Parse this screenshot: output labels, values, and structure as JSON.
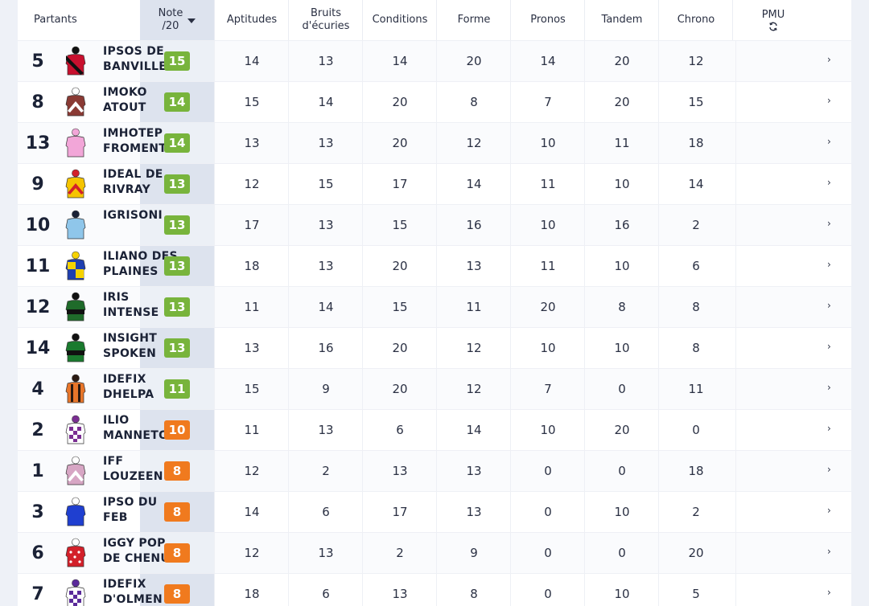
{
  "header": {
    "partants": "Partants",
    "note_line1": "Note",
    "note_line2": "/20",
    "aptitudes": "Aptitudes",
    "bruits_line1": "Bruits",
    "bruits_line2": "d'écuries",
    "conditions": "Conditions",
    "forme": "Forme",
    "pronos": "Pronos",
    "tandem": "Tandem",
    "chrono": "Chrono",
    "pmu": "PMU",
    "pmu_icon": "refresh-icon"
  },
  "colors": {
    "green_badge": "#78b43c",
    "orange_badge": "#f07a1e",
    "note_column_bg": "#dde3ee"
  },
  "rows": [
    {
      "num": "5",
      "name": "IPSOS DE BANVILLE",
      "note": "15",
      "note_color": "green",
      "aptitudes": "14",
      "bruits": "13",
      "conditions": "14",
      "forme": "20",
      "pronos": "14",
      "tandem": "20",
      "chrono": "12",
      "silk": {
        "primary": "#c8102e",
        "secondary": "#111111",
        "pattern": "sash"
      }
    },
    {
      "num": "8",
      "name": "IMOKO ATOUT",
      "note": "14",
      "note_color": "green",
      "aptitudes": "15",
      "bruits": "14",
      "conditions": "20",
      "forme": "8",
      "pronos": "7",
      "tandem": "20",
      "chrono": "15",
      "silk": {
        "primary": "#8a3a34",
        "secondary": "#ffffff",
        "pattern": "chevron"
      }
    },
    {
      "num": "13",
      "name": "IMHOTEP FROMENTRO",
      "note": "14",
      "note_color": "green",
      "aptitudes": "13",
      "bruits": "13",
      "conditions": "20",
      "forme": "12",
      "pronos": "10",
      "tandem": "11",
      "chrono": "18",
      "silk": {
        "primary": "#f2a6d8",
        "secondary": "#f2a6d8",
        "pattern": "plain"
      }
    },
    {
      "num": "9",
      "name": "IDEAL DE RIVRAY",
      "note": "13",
      "note_color": "green",
      "aptitudes": "12",
      "bruits": "15",
      "conditions": "17",
      "forme": "14",
      "pronos": "11",
      "tandem": "10",
      "chrono": "14",
      "silk": {
        "primary": "#f5c400",
        "secondary": "#d3202a",
        "pattern": "chevron"
      }
    },
    {
      "num": "10",
      "name": "IGRISONI",
      "note": "13",
      "note_color": "green",
      "aptitudes": "17",
      "bruits": "13",
      "conditions": "15",
      "forme": "16",
      "pronos": "10",
      "tandem": "16",
      "chrono": "2",
      "silk": {
        "primary": "#8fc6ea",
        "secondary": "#1b2236",
        "pattern": "plain"
      }
    },
    {
      "num": "11",
      "name": "ILIANO DES PLAINES",
      "note": "13",
      "note_color": "green",
      "aptitudes": "18",
      "bruits": "13",
      "conditions": "20",
      "forme": "13",
      "pronos": "11",
      "tandem": "10",
      "chrono": "6",
      "silk": {
        "primary": "#1f3fb0",
        "secondary": "#f5d200",
        "pattern": "quarters"
      }
    },
    {
      "num": "12",
      "name": "IRIS INTENSE",
      "note": "13",
      "note_color": "green",
      "aptitudes": "11",
      "bruits": "14",
      "conditions": "15",
      "forme": "11",
      "pronos": "20",
      "tandem": "8",
      "chrono": "8",
      "silk": {
        "primary": "#1f6b2a",
        "secondary": "#111111",
        "pattern": "hoop"
      }
    },
    {
      "num": "14",
      "name": "INSIGHT SPOKEN",
      "note": "13",
      "note_color": "green",
      "aptitudes": "13",
      "bruits": "16",
      "conditions": "20",
      "forme": "12",
      "pronos": "10",
      "tandem": "10",
      "chrono": "8",
      "silk": {
        "primary": "#1a7a2e",
        "secondary": "#111111",
        "pattern": "hoop"
      }
    },
    {
      "num": "4",
      "name": "IDEFIX DHELPA",
      "note": "11",
      "note_color": "green",
      "aptitudes": "15",
      "bruits": "9",
      "conditions": "20",
      "forme": "12",
      "pronos": "7",
      "tandem": "0",
      "chrono": "11",
      "silk": {
        "primary": "#e8762a",
        "secondary": "#2a1a12",
        "pattern": "stripes"
      }
    },
    {
      "num": "2",
      "name": "ILIO MANNETOT",
      "note": "10",
      "note_color": "orange",
      "aptitudes": "11",
      "bruits": "13",
      "conditions": "6",
      "forme": "14",
      "pronos": "10",
      "tandem": "20",
      "chrono": "0",
      "silk": {
        "primary": "#ffffff",
        "secondary": "#7a2e92",
        "pattern": "check"
      }
    },
    {
      "num": "1",
      "name": "IFF LOUZEEN",
      "note": "8",
      "note_color": "orange",
      "aptitudes": "12",
      "bruits": "2",
      "conditions": "13",
      "forme": "13",
      "pronos": "0",
      "tandem": "0",
      "chrono": "18",
      "silk": {
        "primary": "#d7a6c4",
        "secondary": "#ffffff",
        "pattern": "chevron"
      }
    },
    {
      "num": "3",
      "name": "IPSO DU FEB",
      "note": "8",
      "note_color": "orange",
      "aptitudes": "14",
      "bruits": "6",
      "conditions": "17",
      "forme": "13",
      "pronos": "0",
      "tandem": "10",
      "chrono": "2",
      "silk": {
        "primary": "#1f3fd0",
        "secondary": "#ffffff",
        "pattern": "plain"
      }
    },
    {
      "num": "6",
      "name": "IGGY POP DE CHENU",
      "note": "8",
      "note_color": "orange",
      "aptitudes": "12",
      "bruits": "13",
      "conditions": "2",
      "forme": "9",
      "pronos": "0",
      "tandem": "0",
      "chrono": "20",
      "silk": {
        "primary": "#d3202a",
        "secondary": "#ffffff",
        "pattern": "dots"
      }
    },
    {
      "num": "7",
      "name": "IDEFIX D'OLMEN",
      "note": "8",
      "note_color": "orange",
      "aptitudes": "18",
      "bruits": "6",
      "conditions": "13",
      "forme": "8",
      "pronos": "0",
      "tandem": "10",
      "chrono": "5",
      "silk": {
        "primary": "#ffffff",
        "secondary": "#5a2a9a",
        "pattern": "check"
      }
    }
  ],
  "row_action_icon": "chevron-right-icon"
}
